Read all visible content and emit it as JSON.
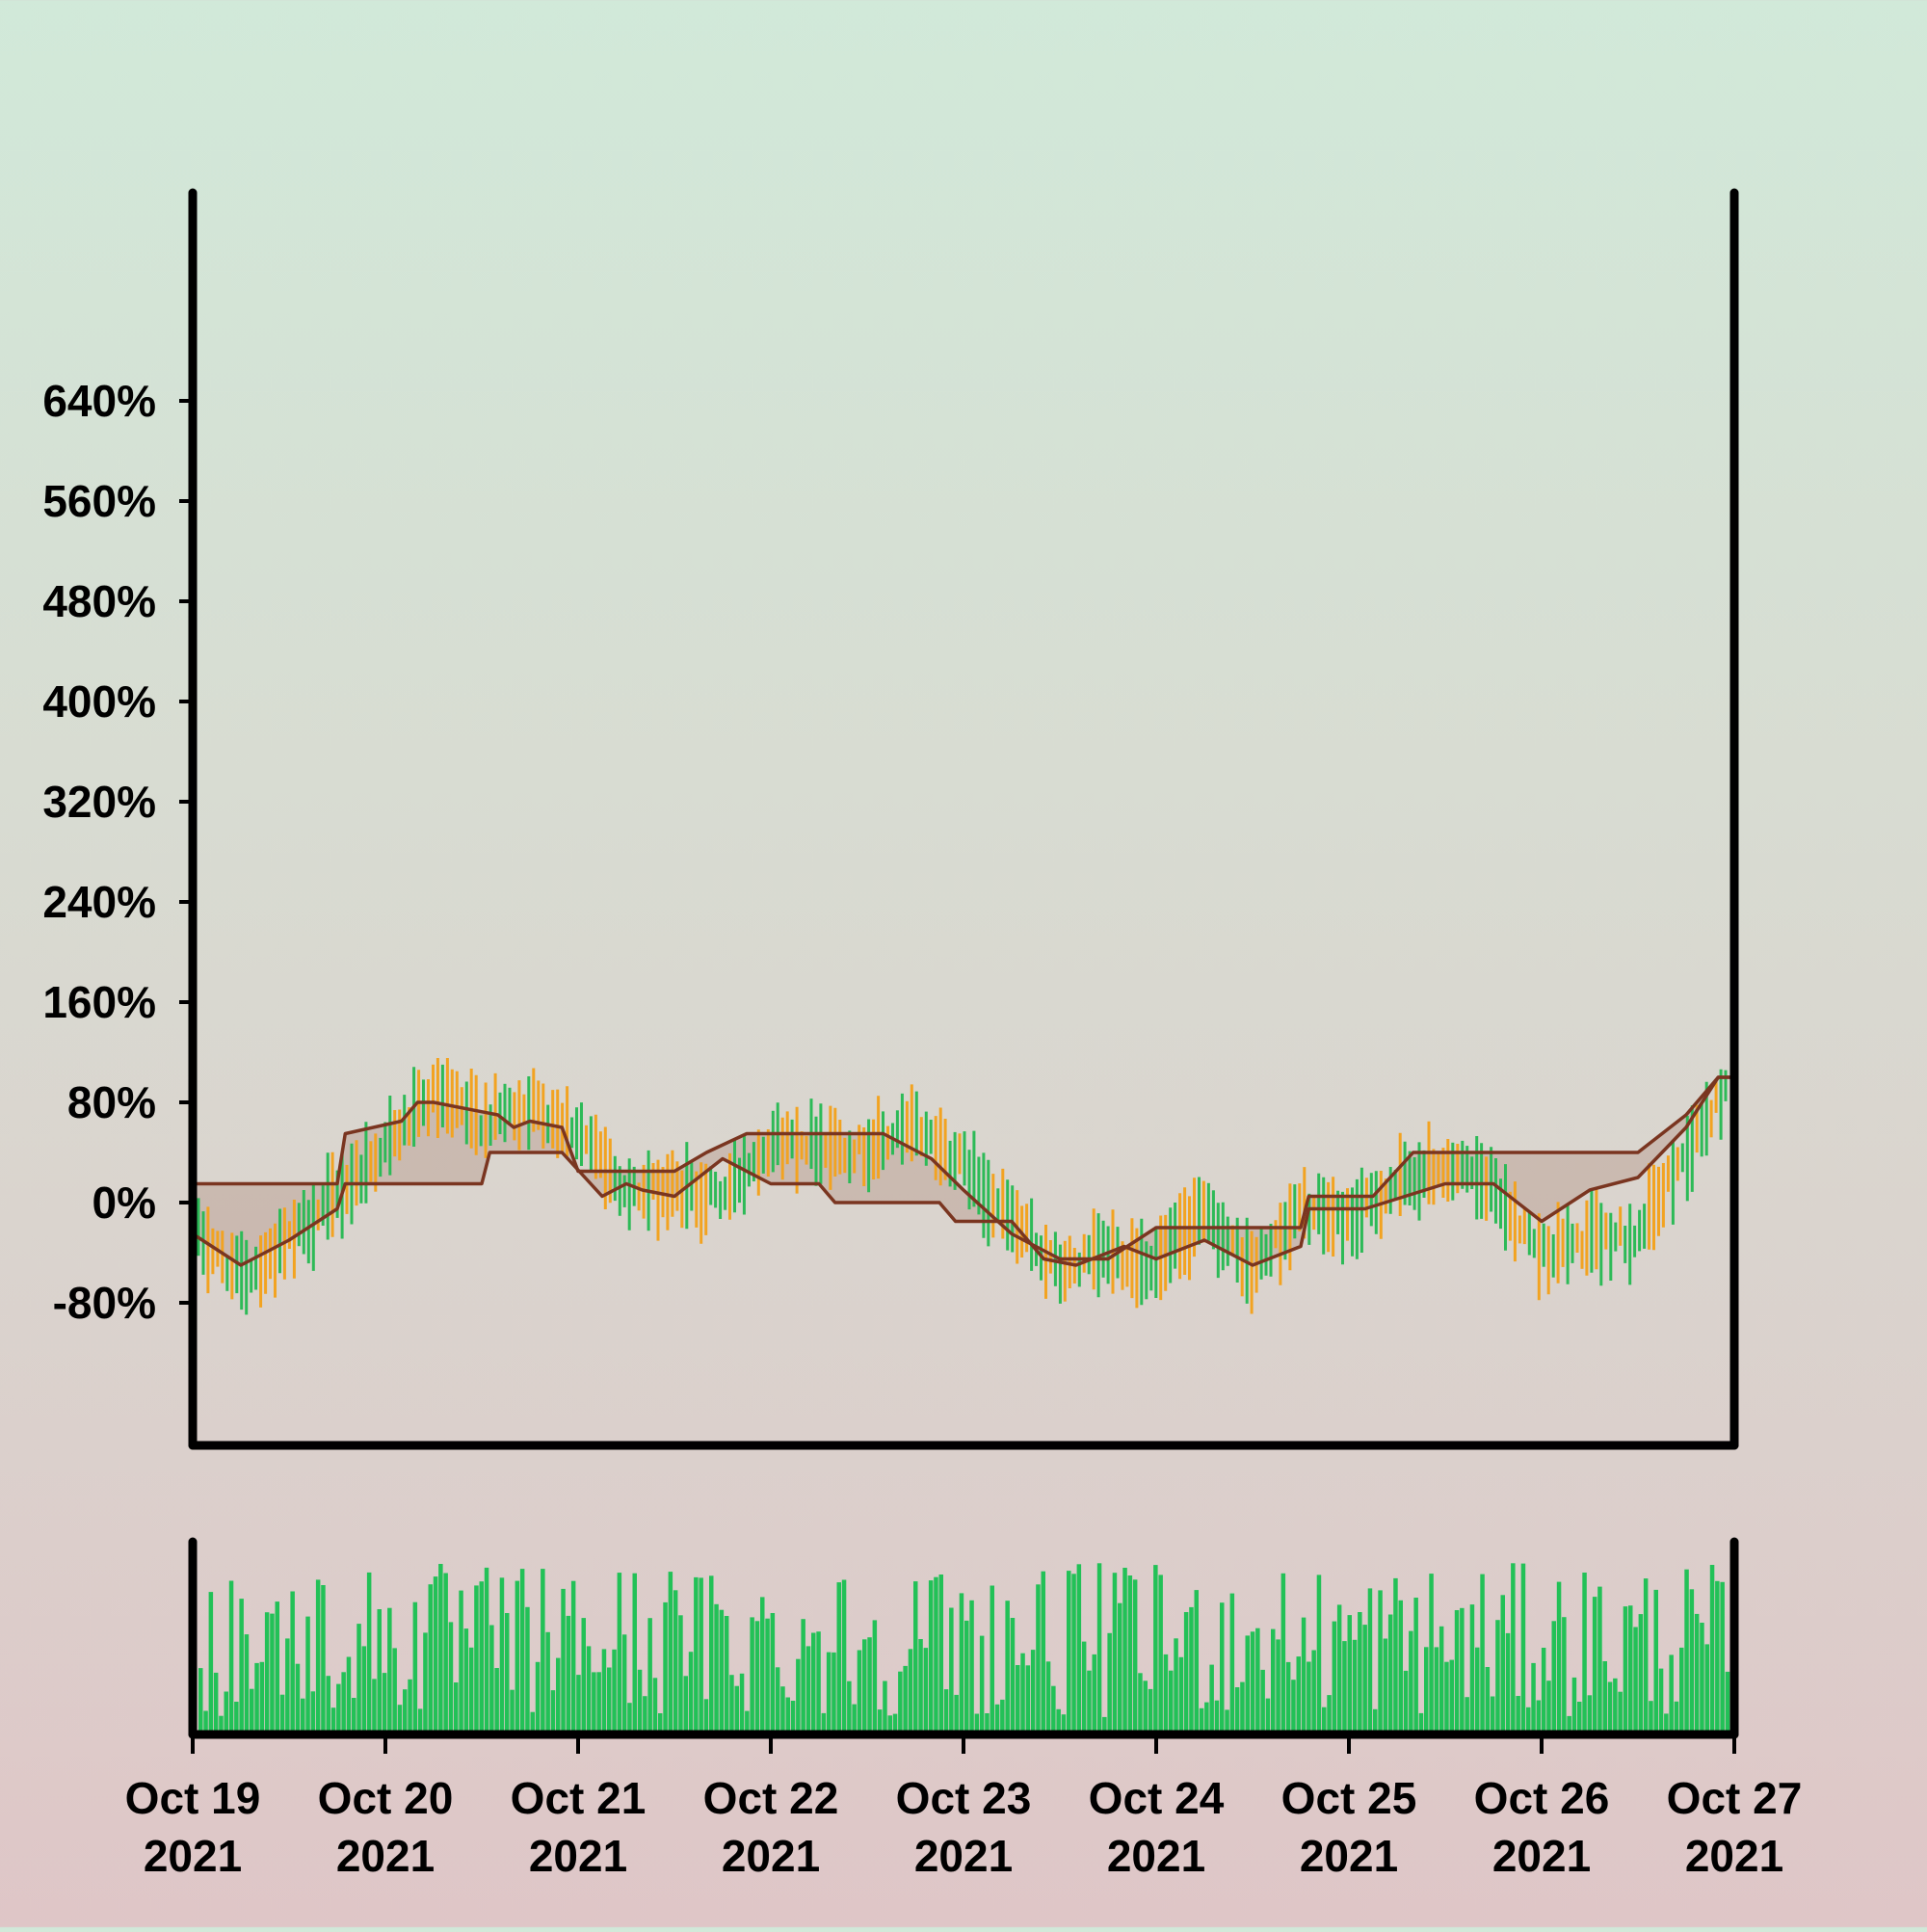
{
  "chart_data": {
    "type": "ohlc",
    "title": "",
    "xlabel": "",
    "ylabel": "",
    "ylim": [
      -80,
      720
    ],
    "y_ticks": [
      "-80%",
      "0%",
      "80%",
      "160%",
      "240%",
      "320%",
      "400%",
      "480%",
      "560%",
      "640%"
    ],
    "x_range": [
      "2021-10-19",
      "2021-10-27"
    ],
    "x_ticks": [
      {
        "date": "2021-10-19",
        "line1": "Oct 19",
        "line2": "2021"
      },
      {
        "date": "2021-10-20",
        "line1": "Oct 20",
        "line2": "2021"
      },
      {
        "date": "2021-10-21",
        "line1": "Oct 21",
        "line2": "2021"
      },
      {
        "date": "2021-10-22",
        "line1": "Oct 22",
        "line2": "2021"
      },
      {
        "date": "2021-10-23",
        "line1": "Oct 23",
        "line2": "2021"
      },
      {
        "date": "2021-10-24",
        "line1": "Oct 24",
        "line2": "2021"
      },
      {
        "date": "2021-10-25",
        "line1": "Oct 25",
        "line2": "2021"
      },
      {
        "date": "2021-10-26",
        "line1": "Oct 26",
        "line2": "2021"
      },
      {
        "date": "2021-10-27",
        "line1": "Oct 27",
        "line2": "2021"
      }
    ],
    "grid": false,
    "legend": "none",
    "series": [
      {
        "kind": "price-bars",
        "up_color": "#2dba57",
        "down_color": "#f2a321"
      },
      {
        "kind": "upper-band-line",
        "color": "#7a3520"
      },
      {
        "kind": "lower-band-line",
        "color": "#7a3520"
      },
      {
        "kind": "volume-bars",
        "color": "#22c157"
      }
    ],
    "price_path": [
      [
        "2021-10-19T00:00",
        -22
      ],
      [
        "2021-10-19T06:00",
        -60
      ],
      [
        "2021-10-19T12:00",
        -32
      ],
      [
        "2021-10-19T18:00",
        5
      ],
      [
        "2021-10-20T00:00",
        45
      ],
      [
        "2021-10-20T06:00",
        85
      ],
      [
        "2021-10-20T12:00",
        65
      ],
      [
        "2021-10-20T18:00",
        78
      ],
      [
        "2021-10-21T00:00",
        58
      ],
      [
        "2021-10-21T06:00",
        8
      ],
      [
        "2021-10-21T12:00",
        10
      ],
      [
        "2021-10-21T18:00",
        5
      ],
      [
        "2021-10-22T00:00",
        50
      ],
      [
        "2021-10-22T06:00",
        48
      ],
      [
        "2021-10-22T12:00",
        42
      ],
      [
        "2021-10-22T18:00",
        60
      ],
      [
        "2021-10-23T00:00",
        30
      ],
      [
        "2021-10-23T06:00",
        -15
      ],
      [
        "2021-10-23T12:00",
        -55
      ],
      [
        "2021-10-23T18:00",
        -40
      ],
      [
        "2021-10-24T00:00",
        -50
      ],
      [
        "2021-10-24T06:00",
        -10
      ],
      [
        "2021-10-24T12:00",
        -55
      ],
      [
        "2021-10-24T18:00",
        -5
      ],
      [
        "2021-10-25T00:00",
        -15
      ],
      [
        "2021-10-25T06:00",
        15
      ],
      [
        "2021-10-25T12:00",
        30
      ],
      [
        "2021-10-25T18:00",
        10
      ],
      [
        "2021-10-26T00:00",
        -40
      ],
      [
        "2021-10-26T06:00",
        -30
      ],
      [
        "2021-10-26T12:00",
        -25
      ],
      [
        "2021-10-26T18:00",
        40
      ],
      [
        "2021-10-27T00:00",
        100
      ]
    ],
    "upper_band_path": [
      [
        "2021-10-19T00:00",
        15
      ],
      [
        "2021-10-19T18:00",
        15
      ],
      [
        "2021-10-19T19:00",
        55
      ],
      [
        "2021-10-20T02:00",
        65
      ],
      [
        "2021-10-20T04:00",
        80
      ],
      [
        "2021-10-20T06:00",
        80
      ],
      [
        "2021-10-20T14:00",
        70
      ],
      [
        "2021-10-20T16:00",
        60
      ],
      [
        "2021-10-20T18:00",
        65
      ],
      [
        "2021-10-20T22:00",
        60
      ],
      [
        "2021-10-21T00:00",
        25
      ],
      [
        "2021-10-21T12:00",
        25
      ],
      [
        "2021-10-21T16:00",
        40
      ],
      [
        "2021-10-21T21:00",
        55
      ],
      [
        "2021-10-22T06:00",
        55
      ],
      [
        "2021-10-22T14:00",
        55
      ],
      [
        "2021-10-22T20:00",
        35
      ],
      [
        "2021-10-23T00:00",
        10
      ],
      [
        "2021-10-23T06:00",
        -25
      ],
      [
        "2021-10-23T12:00",
        -45
      ],
      [
        "2021-10-23T18:00",
        -45
      ],
      [
        "2021-10-24T00:00",
        -20
      ],
      [
        "2021-10-24T18:00",
        -20
      ],
      [
        "2021-10-24T19:00",
        5
      ],
      [
        "2021-10-25T03:00",
        5
      ],
      [
        "2021-10-25T08:00",
        40
      ],
      [
        "2021-10-26T12:00",
        40
      ],
      [
        "2021-10-26T18:00",
        70
      ],
      [
        "2021-10-26T22:00",
        100
      ],
      [
        "2021-10-27T00:00",
        100
      ]
    ],
    "lower_band_path": [
      [
        "2021-10-19T00:00",
        -25
      ],
      [
        "2021-10-19T06:00",
        -50
      ],
      [
        "2021-10-19T12:00",
        -30
      ],
      [
        "2021-10-19T18:00",
        -5
      ],
      [
        "2021-10-19T19:00",
        15
      ],
      [
        "2021-10-20T12:00",
        15
      ],
      [
        "2021-10-20T13:00",
        40
      ],
      [
        "2021-10-20T22:00",
        40
      ],
      [
        "2021-10-21T03:00",
        5
      ],
      [
        "2021-10-21T06:00",
        15
      ],
      [
        "2021-10-21T08:00",
        10
      ],
      [
        "2021-10-21T12:00",
        5
      ],
      [
        "2021-10-21T18:00",
        35
      ],
      [
        "2021-10-22T00:00",
        15
      ],
      [
        "2021-10-22T06:00",
        15
      ],
      [
        "2021-10-22T08:00",
        0
      ],
      [
        "2021-10-22T21:00",
        0
      ],
      [
        "2021-10-22T23:00",
        -15
      ],
      [
        "2021-10-23T06:00",
        -15
      ],
      [
        "2021-10-23T10:00",
        -45
      ],
      [
        "2021-10-23T14:00",
        -50
      ],
      [
        "2021-10-23T20:00",
        -35
      ],
      [
        "2021-10-24T00:00",
        -45
      ],
      [
        "2021-10-24T06:00",
        -30
      ],
      [
        "2021-10-24T12:00",
        -50
      ],
      [
        "2021-10-24T18:00",
        -35
      ],
      [
        "2021-10-24T19:00",
        -5
      ],
      [
        "2021-10-25T02:00",
        -5
      ],
      [
        "2021-10-25T12:00",
        15
      ],
      [
        "2021-10-25T18:00",
        15
      ],
      [
        "2021-10-26T00:00",
        -15
      ],
      [
        "2021-10-26T06:00",
        10
      ],
      [
        "2021-10-26T12:00",
        20
      ],
      [
        "2021-10-26T18:00",
        60
      ],
      [
        "2021-10-26T22:00",
        100
      ],
      [
        "2021-10-27T00:00",
        100
      ]
    ]
  }
}
